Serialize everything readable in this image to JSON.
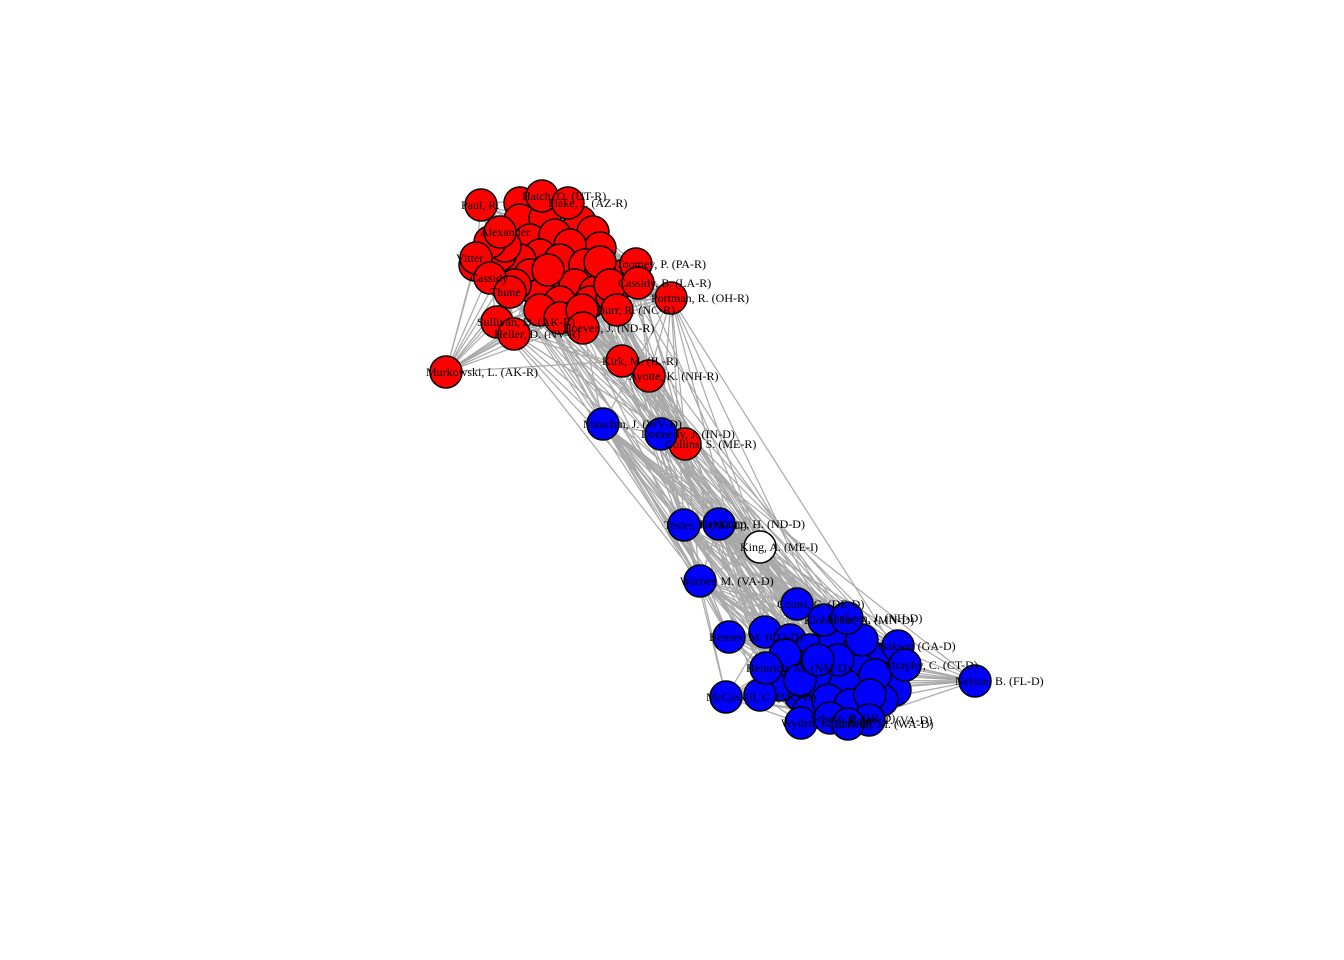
{
  "colors": {
    "republican": "#ff0000",
    "democrat": "#0000ff",
    "independent": "#ffffff",
    "edge": "#a9a9a9"
  },
  "nodes": [
    {
      "id": "paul",
      "label": "Paul, R.",
      "party": "R"
    },
    {
      "id": "r_top1",
      "label": "Hatch, O. (UT-R)",
      "party": "R"
    },
    {
      "id": "r_top2",
      "label": "Flake, J. (AZ-R)",
      "party": "R"
    },
    {
      "id": "alexander",
      "label": "Alexander",
      "party": "R"
    },
    {
      "id": "vitter",
      "label": "Vitter",
      "party": "R"
    },
    {
      "id": "cassidy",
      "label": "Cassidy",
      "party": "R"
    },
    {
      "id": "thune",
      "label": "Thune",
      "party": "R"
    },
    {
      "id": "r_pa",
      "label": "Toomey, P. (PA-R)",
      "party": "R"
    },
    {
      "id": "r_la",
      "label": "Cassidy, B. (LA-R)",
      "party": "R"
    },
    {
      "id": "portman",
      "label": "Portman, R. (OH-R)",
      "party": "R"
    },
    {
      "id": "r_nc",
      "label": "Burr, R. (NC-R)",
      "party": "R"
    },
    {
      "id": "hoeven",
      "label": "Hoeven, J. (ND-R)",
      "party": "R"
    },
    {
      "id": "sullivan",
      "label": "Sullivan, D. (AK-R)",
      "party": "R"
    },
    {
      "id": "capito",
      "label": "Heller, D. (NV-R)",
      "party": "R"
    },
    {
      "id": "murkowski",
      "label": "Murkowski, L. (AK-R)",
      "party": "R"
    },
    {
      "id": "kirk",
      "label": "Kirk, M. (IL-R)",
      "party": "R"
    },
    {
      "id": "ayotte",
      "label": "Ayotte, K. (NH-R)",
      "party": "R"
    },
    {
      "id": "collins",
      "label": "Collins, S. (ME-R)",
      "party": "R"
    },
    {
      "id": "manchin",
      "label": "Manchin, J. (WV-D)",
      "party": "D"
    },
    {
      "id": "donnelly",
      "label": "Donnelly, J. (IN-D)",
      "party": "D"
    },
    {
      "id": "tester",
      "label": "Tester, J. (MT-D)",
      "party": "D"
    },
    {
      "id": "heitkamp",
      "label": "Heitkamp, H. (ND-D)",
      "party": "D"
    },
    {
      "id": "king",
      "label": "King, A. (ME-I)",
      "party": "I"
    },
    {
      "id": "warner",
      "label": "Warner, M. (VA-D)",
      "party": "D"
    },
    {
      "id": "coons",
      "label": "Coons, C. (DE-D)",
      "party": "D"
    },
    {
      "id": "klobuchar",
      "label": "Klobuchar, A. (MN-D)",
      "party": "D"
    },
    {
      "id": "shaheen",
      "label": "Shaheen, J. (NH-D)",
      "party": "D"
    },
    {
      "id": "bennet",
      "label": "Bennet, M. (CO-D)",
      "party": "D"
    },
    {
      "id": "heinrich",
      "label": "Heinrich, M. (NM-D)",
      "party": "D"
    },
    {
      "id": "kaine",
      "label": "Kaine, T. (VA-D)",
      "party": "D"
    },
    {
      "id": "d_ga",
      "label": "Isakson (GA-D)",
      "party": "D"
    },
    {
      "id": "d_ct",
      "label": "Murphy, C. (CT-D)",
      "party": "D"
    },
    {
      "id": "nelson",
      "label": "Nelson, B. (FL-D)",
      "party": "D"
    },
    {
      "id": "mccaskill",
      "label": "McCaskill, C. (MO-D)",
      "party": "D"
    },
    {
      "id": "wyden",
      "label": "Wyden, R. (OR-D)",
      "party": "D"
    },
    {
      "id": "schatz",
      "label": "Schatz, B. (HI-D)",
      "party": "D"
    },
    {
      "id": "cantwell",
      "label": "Cantwell, M. (WA-D)",
      "party": "D"
    }
  ]
}
